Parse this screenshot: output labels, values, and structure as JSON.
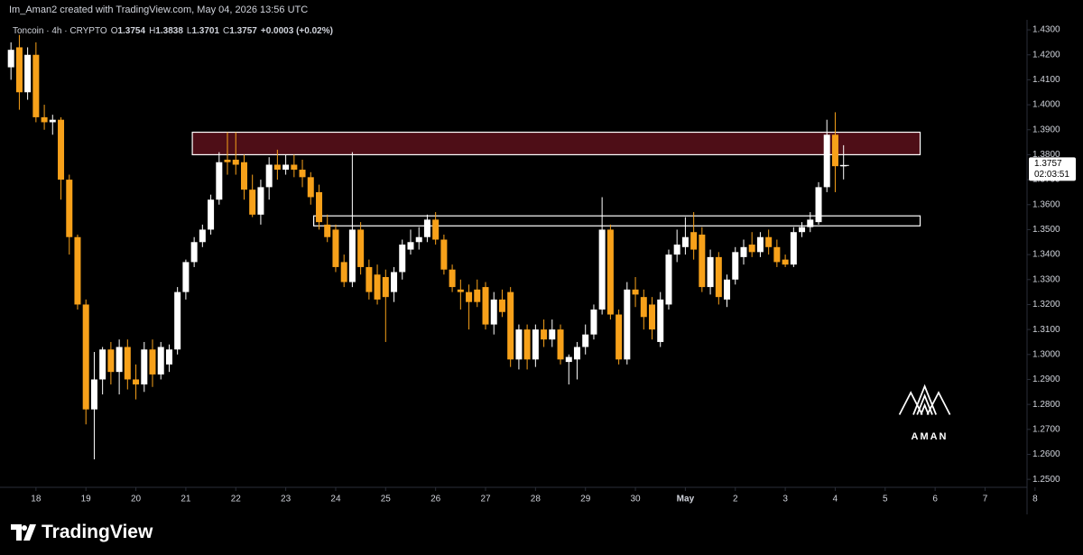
{
  "header": {
    "credit": "Im_Aman2 created with TradingView.com, May 04, 2026 13:56 UTC"
  },
  "chart_data": {
    "type": "candlestick",
    "symbol": "Toncoin · 4h · CRYPTO",
    "legend_letters": [
      "O",
      "H",
      "L",
      "C"
    ],
    "change": "+0.0003 (+0.02%)",
    "countdown": "02:03:51",
    "up_color": "#ffffff",
    "down_color": "#f7a11a",
    "x": [
      17.5,
      17.667,
      17.833,
      18,
      18.167,
      18.333,
      18.5,
      18.667,
      18.833,
      19,
      19.167,
      19.333,
      19.5,
      19.667,
      19.833,
      20,
      20.167,
      20.333,
      20.5,
      20.667,
      20.833,
      21,
      21.167,
      21.333,
      21.5,
      21.667,
      21.833,
      22,
      22.167,
      22.333,
      22.5,
      22.667,
      22.833,
      23,
      23.167,
      23.333,
      23.5,
      23.667,
      23.833,
      24,
      24.167,
      24.333,
      24.5,
      24.667,
      24.833,
      25,
      25.167,
      25.333,
      25.5,
      25.667,
      25.833,
      26,
      26.167,
      26.333,
      26.5,
      26.667,
      26.833,
      27,
      27.167,
      27.333,
      27.5,
      27.667,
      27.833,
      28,
      28.167,
      28.333,
      28.5,
      28.667,
      28.833,
      29,
      29.167,
      29.333,
      29.5,
      29.667,
      29.833,
      30,
      30.167,
      30.333,
      30.5,
      30.667,
      30.833,
      31,
      31.167,
      31.333,
      31.5,
      31.667,
      31.833,
      32,
      32.167,
      32.333,
      32.5,
      32.667,
      32.833,
      33,
      33.167,
      33.333,
      33.5,
      33.667,
      33.833,
      34,
      34.167
    ],
    "open": [
      1.415,
      1.423,
      1.405,
      1.42,
      1.395,
      1.393,
      1.394,
      1.37,
      1.347,
      1.32,
      1.278,
      1.29,
      1.302,
      1.293,
      1.303,
      1.29,
      1.288,
      1.302,
      1.292,
      1.296,
      1.302,
      1.325,
      1.337,
      1.345,
      1.35,
      1.362,
      1.378,
      1.378,
      1.377,
      1.366,
      1.356,
      1.367,
      1.376,
      1.374,
      1.376,
      1.374,
      1.371,
      1.365,
      1.352,
      1.35,
      1.337,
      1.329,
      1.35,
      1.335,
      1.332,
      1.331,
      1.325,
      1.333,
      1.342,
      1.345,
      1.347,
      1.354,
      1.346,
      1.334,
      1.326,
      1.325,
      1.326,
      1.327,
      1.312,
      1.322,
      1.325,
      1.298,
      1.31,
      1.298,
      1.31,
      1.306,
      1.31,
      1.297,
      1.298,
      1.303,
      1.308,
      1.318,
      1.35,
      1.316,
      1.298,
      1.326,
      1.323,
      1.32,
      1.305,
      1.32,
      1.34,
      1.343,
      1.349,
      1.348,
      1.327,
      1.339,
      1.322,
      1.33,
      1.339,
      1.344,
      1.341,
      1.347,
      1.343,
      1.338,
      1.336,
      1.349,
      1.351,
      1.353,
      1.367,
      1.388,
      1.3754
    ],
    "high": [
      1.425,
      1.428,
      1.423,
      1.425,
      1.4,
      1.396,
      1.395,
      1.372,
      1.348,
      1.322,
      1.301,
      1.303,
      1.305,
      1.306,
      1.306,
      1.296,
      1.305,
      1.306,
      1.305,
      1.304,
      1.327,
      1.338,
      1.347,
      1.352,
      1.364,
      1.381,
      1.389,
      1.389,
      1.38,
      1.372,
      1.37,
      1.379,
      1.382,
      1.38,
      1.38,
      1.378,
      1.373,
      1.368,
      1.356,
      1.352,
      1.34,
      1.381,
      1.353,
      1.338,
      1.336,
      1.334,
      1.335,
      1.346,
      1.35,
      1.351,
      1.356,
      1.357,
      1.348,
      1.336,
      1.33,
      1.328,
      1.33,
      1.329,
      1.325,
      1.326,
      1.327,
      1.312,
      1.312,
      1.312,
      1.314,
      1.314,
      1.312,
      1.3,
      1.305,
      1.312,
      1.32,
      1.363,
      1.352,
      1.318,
      1.329,
      1.331,
      1.326,
      1.323,
      1.325,
      1.342,
      1.35,
      1.355,
      1.357,
      1.351,
      1.342,
      1.341,
      1.332,
      1.343,
      1.346,
      1.349,
      1.349,
      1.35,
      1.346,
      1.34,
      1.351,
      1.353,
      1.357,
      1.369,
      1.394,
      1.397,
      1.3838
    ],
    "low": [
      1.41,
      1.398,
      1.402,
      1.393,
      1.39,
      1.388,
      1.362,
      1.34,
      1.318,
      1.272,
      1.258,
      1.284,
      1.288,
      1.284,
      1.286,
      1.282,
      1.285,
      1.287,
      1.29,
      1.293,
      1.3,
      1.322,
      1.335,
      1.343,
      1.348,
      1.36,
      1.372,
      1.372,
      1.362,
      1.355,
      1.352,
      1.362,
      1.37,
      1.372,
      1.371,
      1.367,
      1.36,
      1.35,
      1.345,
      1.333,
      1.327,
      1.327,
      1.332,
      1.322,
      1.32,
      1.305,
      1.321,
      1.33,
      1.34,
      1.342,
      1.345,
      1.344,
      1.332,
      1.325,
      1.318,
      1.31,
      1.319,
      1.31,
      1.308,
      1.315,
      1.295,
      1.294,
      1.294,
      1.295,
      1.303,
      1.303,
      1.296,
      1.288,
      1.29,
      1.3,
      1.306,
      1.316,
      1.314,
      1.296,
      1.296,
      1.319,
      1.31,
      1.306,
      1.303,
      1.318,
      1.337,
      1.34,
      1.338,
      1.325,
      1.324,
      1.32,
      1.319,
      1.328,
      1.336,
      1.339,
      1.339,
      1.34,
      1.335,
      1.335,
      1.335,
      1.347,
      1.349,
      1.352,
      1.365,
      1.365,
      1.3701
    ],
    "close": [
      1.422,
      1.405,
      1.42,
      1.395,
      1.393,
      1.394,
      1.37,
      1.347,
      1.32,
      1.278,
      1.29,
      1.302,
      1.293,
      1.303,
      1.29,
      1.288,
      1.302,
      1.292,
      1.303,
      1.302,
      1.325,
      1.337,
      1.345,
      1.35,
      1.362,
      1.377,
      1.377,
      1.376,
      1.366,
      1.356,
      1.367,
      1.376,
      1.374,
      1.376,
      1.374,
      1.371,
      1.363,
      1.353,
      1.347,
      1.335,
      1.329,
      1.35,
      1.335,
      1.325,
      1.322,
      1.323,
      1.333,
      1.344,
      1.345,
      1.347,
      1.354,
      1.346,
      1.334,
      1.327,
      1.325,
      1.321,
      1.321,
      1.312,
      1.322,
      1.317,
      1.298,
      1.31,
      1.298,
      1.31,
      1.306,
      1.31,
      1.298,
      1.299,
      1.303,
      1.308,
      1.318,
      1.35,
      1.316,
      1.298,
      1.326,
      1.324,
      1.315,
      1.31,
      1.322,
      1.34,
      1.344,
      1.347,
      1.342,
      1.327,
      1.339,
      1.323,
      1.33,
      1.341,
      1.343,
      1.341,
      1.347,
      1.343,
      1.337,
      1.336,
      1.349,
      1.351,
      1.354,
      1.367,
      1.388,
      1.3754,
      1.3757
    ],
    "zones": [
      {
        "low": 1.38,
        "high": 1.389,
        "start": 21.13,
        "end": 35.7,
        "color": "#4e0e17"
      },
      {
        "low": 1.3515,
        "high": 1.3555,
        "start": 23.56,
        "end": 35.7,
        "color": "none"
      }
    ],
    "xlim": [
      17.28,
      37.84
    ],
    "xticks": [
      18,
      19,
      20,
      21,
      22,
      23,
      24,
      25,
      26,
      27,
      28,
      29,
      30,
      {
        "value": 31,
        "label": "May"
      },
      {
        "value": 32,
        "label": "2"
      },
      {
        "value": 33,
        "label": "3"
      },
      {
        "value": 34,
        "label": "4"
      },
      {
        "value": 35,
        "label": "5"
      },
      {
        "value": 36,
        "label": "6"
      },
      {
        "value": 37,
        "label": "7"
      },
      {
        "value": 38,
        "label": "8"
      }
    ],
    "ylim": [
      1.2468,
      1.434
    ],
    "yticks": [
      {
        "value": 1.43,
        "label": "1.4300"
      },
      {
        "value": 1.42,
        "label": "1.4200"
      },
      {
        "value": 1.41,
        "label": "1.4100"
      },
      {
        "value": 1.4,
        "label": "1.4000"
      },
      {
        "value": 1.39,
        "label": "1.3900"
      },
      {
        "value": 1.38,
        "label": "1.3800"
      },
      {
        "value": 1.37,
        "label": "1.3700"
      },
      {
        "value": 1.36,
        "label": "1.3600"
      },
      {
        "value": 1.35,
        "label": "1.3500"
      },
      {
        "value": 1.34,
        "label": "1.3400"
      },
      {
        "value": 1.33,
        "label": "1.3300"
      },
      {
        "value": 1.32,
        "label": "1.3200"
      },
      {
        "value": 1.31,
        "label": "1.3100"
      },
      {
        "value": 1.3,
        "label": "1.3000"
      },
      {
        "value": 1.29,
        "label": "1.2900"
      },
      {
        "value": 1.28,
        "label": "1.2800"
      },
      {
        "value": 1.27,
        "label": "1.2700"
      },
      {
        "value": 1.26,
        "label": "1.2600"
      },
      {
        "value": 1.25,
        "label": "1.2500"
      }
    ],
    "grid": false
  },
  "branding": {
    "watermark": "AMAN",
    "footer": "TradingView"
  }
}
